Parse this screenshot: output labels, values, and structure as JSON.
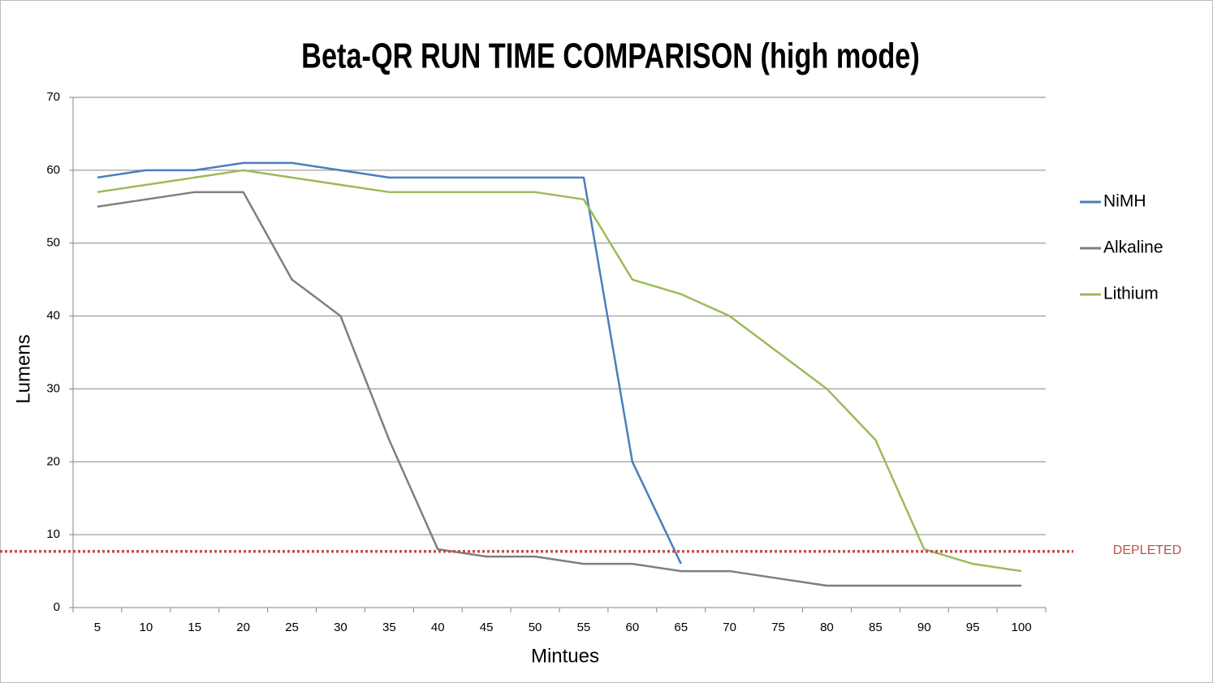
{
  "chart_data": {
    "type": "line",
    "title": "Beta-QR RUN TIME COMPARISON (high mode)",
    "x_label": "Mintues",
    "y_label": "Lumens",
    "categories": [
      "5",
      "10",
      "15",
      "20",
      "25",
      "30",
      "35",
      "40",
      "45",
      "50",
      "55",
      "60",
      "65",
      "70",
      "75",
      "80",
      "85",
      "90",
      "95",
      "100"
    ],
    "series": [
      {
        "name": "NiMH",
        "color": "#4a7ebb",
        "values": [
          59,
          60,
          60,
          61,
          61,
          60,
          59,
          59,
          59,
          59,
          59,
          20,
          6,
          null,
          null,
          null,
          null,
          null,
          null,
          null
        ]
      },
      {
        "name": "Alkaline",
        "color": "#7f7f7f",
        "values": [
          55,
          56,
          57,
          57,
          45,
          40,
          23,
          8,
          7,
          7,
          6,
          6,
          5,
          5,
          4,
          3,
          3,
          3,
          3,
          3
        ]
      },
      {
        "name": "Lithium",
        "color": "#9bbb59",
        "values": [
          57,
          58,
          59,
          60,
          59,
          58,
          57,
          57,
          57,
          57,
          56,
          45,
          43,
          40,
          35,
          30,
          23,
          8,
          6,
          5
        ]
      }
    ],
    "ylim": [
      0,
      70
    ],
    "yticks": [
      0,
      10,
      20,
      30,
      40,
      50,
      60,
      70
    ],
    "grid": true,
    "legend": "right",
    "reference_line": {
      "value": 7.7,
      "label": "DEPLETED",
      "color": "#c0504d"
    }
  }
}
